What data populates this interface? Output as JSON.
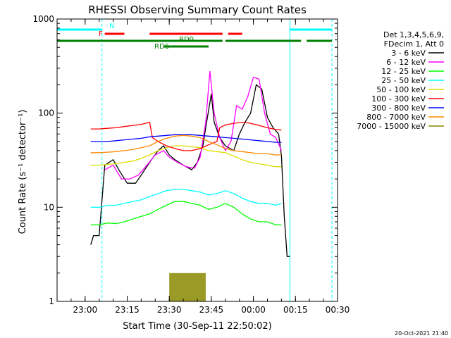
{
  "chart_data": {
    "type": "line",
    "title": "RHESSI Observing Summary Count Rates",
    "xlabel": "Start Time (30-Sep-11 22:50:02)",
    "ylabel": "Count Rate (s⁻¹ detector⁻¹)",
    "yscale": "log",
    "ylim": [
      1,
      1000
    ],
    "xlim_minutes": [
      0,
      100
    ],
    "x_ticks": [
      {
        "m": 10,
        "label": "23:00"
      },
      {
        "m": 25,
        "label": "23:15"
      },
      {
        "m": 40,
        "label": "23:30"
      },
      {
        "m": 55,
        "label": "23:45"
      },
      {
        "m": 70,
        "label": "00:00"
      },
      {
        "m": 85,
        "label": "00:15"
      },
      {
        "m": 100,
        "label": "00:30"
      }
    ],
    "y_ticks": [
      {
        "v": 1,
        "label": "1"
      },
      {
        "v": 10,
        "label": "10"
      },
      {
        "v": 100,
        "label": "100"
      },
      {
        "v": 1000,
        "label": "1000"
      }
    ],
    "legend_header": [
      "Det 1,3,4,5,6,9,",
      "FDecim 1, Att 0"
    ],
    "legend_position": "right",
    "series": [
      {
        "name": "3 - 6 keV",
        "color": "#000000",
        "points": [
          [
            12,
            4
          ],
          [
            13,
            5
          ],
          [
            15,
            5
          ],
          [
            17,
            28
          ],
          [
            20,
            32
          ],
          [
            22,
            25
          ],
          [
            25,
            18
          ],
          [
            28,
            18
          ],
          [
            30,
            22
          ],
          [
            33,
            30
          ],
          [
            36,
            40
          ],
          [
            38,
            45
          ],
          [
            40,
            36
          ],
          [
            42,
            32
          ],
          [
            45,
            28
          ],
          [
            48,
            25
          ],
          [
            50,
            30
          ],
          [
            52,
            45
          ],
          [
            53,
            70
          ],
          [
            55,
            160
          ],
          [
            56,
            80
          ],
          [
            58,
            55
          ],
          [
            60,
            45
          ],
          [
            63,
            40
          ],
          [
            65,
            60
          ],
          [
            67,
            80
          ],
          [
            69,
            100
          ],
          [
            71,
            200
          ],
          [
            73,
            180
          ],
          [
            75,
            90
          ],
          [
            77,
            70
          ],
          [
            79,
            60
          ],
          [
            80,
            35
          ],
          [
            81,
            8
          ],
          [
            82,
            3
          ],
          [
            83,
            3
          ]
        ]
      },
      {
        "name": "6 - 12 keV",
        "color": "#ff00ff",
        "points": [
          [
            17,
            25
          ],
          [
            20,
            28
          ],
          [
            23,
            20
          ],
          [
            26,
            20
          ],
          [
            29,
            22
          ],
          [
            32,
            28
          ],
          [
            35,
            36
          ],
          [
            38,
            40
          ],
          [
            40,
            34
          ],
          [
            43,
            30
          ],
          [
            46,
            27
          ],
          [
            49,
            26
          ],
          [
            51,
            34
          ],
          [
            53,
            80
          ],
          [
            54.5,
            280
          ],
          [
            56,
            100
          ],
          [
            58,
            55
          ],
          [
            60,
            40
          ],
          [
            62,
            50
          ],
          [
            64,
            120
          ],
          [
            66,
            110
          ],
          [
            68,
            150
          ],
          [
            70,
            240
          ],
          [
            72,
            230
          ],
          [
            74,
            100
          ],
          [
            76,
            60
          ],
          [
            78,
            55
          ],
          [
            80,
            40
          ]
        ]
      },
      {
        "name": "12 - 25 keV",
        "color": "#00ff00",
        "points": [
          [
            12,
            6.5
          ],
          [
            15,
            6.5
          ],
          [
            18,
            6.8
          ],
          [
            21,
            6.7
          ],
          [
            24,
            7
          ],
          [
            27,
            7.5
          ],
          [
            30,
            8
          ],
          [
            33,
            8.5
          ],
          [
            36,
            9.5
          ],
          [
            39,
            10.5
          ],
          [
            42,
            11.5
          ],
          [
            45,
            11.5
          ],
          [
            48,
            11
          ],
          [
            51,
            10.5
          ],
          [
            54,
            9.5
          ],
          [
            57,
            10
          ],
          [
            60,
            11
          ],
          [
            63,
            10
          ],
          [
            66,
            8.5
          ],
          [
            69,
            7.5
          ],
          [
            72,
            7
          ],
          [
            75,
            7
          ],
          [
            78,
            6.5
          ],
          [
            80,
            6.5
          ]
        ]
      },
      {
        "name": "25 - 50 keV",
        "color": "#00ffff",
        "points": [
          [
            12,
            10
          ],
          [
            15,
            10
          ],
          [
            18,
            10.5
          ],
          [
            21,
            10.5
          ],
          [
            24,
            11
          ],
          [
            27,
            11.5
          ],
          [
            30,
            12
          ],
          [
            33,
            13
          ],
          [
            36,
            14
          ],
          [
            39,
            15
          ],
          [
            42,
            15.5
          ],
          [
            45,
            15.5
          ],
          [
            48,
            15
          ],
          [
            51,
            14.5
          ],
          [
            54,
            13.5
          ],
          [
            57,
            14
          ],
          [
            60,
            15
          ],
          [
            63,
            14
          ],
          [
            66,
            12.5
          ],
          [
            69,
            11.5
          ],
          [
            72,
            11
          ],
          [
            75,
            11
          ],
          [
            78,
            10.5
          ],
          [
            80,
            11
          ]
        ]
      },
      {
        "name": "50 - 100 keV",
        "color": "#dddd00",
        "points": [
          [
            12,
            28
          ],
          [
            15,
            28
          ],
          [
            18,
            28.5
          ],
          [
            21,
            29
          ],
          [
            24,
            30
          ],
          [
            27,
            31
          ],
          [
            30,
            33
          ],
          [
            33,
            36
          ],
          [
            36,
            40
          ],
          [
            39,
            43
          ],
          [
            42,
            45
          ],
          [
            45,
            45
          ],
          [
            48,
            44
          ],
          [
            51,
            43
          ],
          [
            54,
            40
          ],
          [
            57,
            39
          ],
          [
            60,
            38
          ],
          [
            63,
            35
          ],
          [
            66,
            32
          ],
          [
            69,
            30
          ],
          [
            72,
            29
          ],
          [
            75,
            28
          ],
          [
            78,
            27
          ],
          [
            80,
            27
          ]
        ]
      },
      {
        "name": "100 - 300 keV",
        "color": "#ff0000",
        "points": [
          [
            12,
            68
          ],
          [
            15,
            68
          ],
          [
            18,
            69
          ],
          [
            21,
            70
          ],
          [
            24,
            72
          ],
          [
            27,
            74
          ],
          [
            30,
            76
          ],
          [
            33,
            80
          ],
          [
            34,
            55
          ],
          [
            36,
            50
          ],
          [
            39,
            45
          ],
          [
            42,
            42
          ],
          [
            45,
            40
          ],
          [
            48,
            40
          ],
          [
            51,
            42
          ],
          [
            54,
            46
          ],
          [
            57,
            50
          ],
          [
            58,
            70
          ],
          [
            60,
            75
          ],
          [
            63,
            78
          ],
          [
            66,
            80
          ],
          [
            69,
            78
          ],
          [
            72,
            74
          ],
          [
            75,
            70
          ],
          [
            78,
            67
          ],
          [
            80,
            66
          ]
        ]
      },
      {
        "name": "300 - 800 keV",
        "color": "#0000ff",
        "points": [
          [
            12,
            50
          ],
          [
            15,
            50
          ],
          [
            18,
            50
          ],
          [
            21,
            51
          ],
          [
            24,
            52
          ],
          [
            27,
            53
          ],
          [
            30,
            54
          ],
          [
            33,
            56
          ],
          [
            36,
            57
          ],
          [
            39,
            58
          ],
          [
            42,
            59
          ],
          [
            45,
            59
          ],
          [
            48,
            59
          ],
          [
            51,
            58
          ],
          [
            54,
            57
          ],
          [
            57,
            56
          ],
          [
            60,
            55
          ],
          [
            63,
            54
          ],
          [
            66,
            53
          ],
          [
            69,
            52
          ],
          [
            72,
            51
          ],
          [
            75,
            50
          ],
          [
            78,
            49
          ],
          [
            80,
            49
          ]
        ]
      },
      {
        "name": "800 - 7000 keV",
        "color": "#ff8800",
        "points": [
          [
            12,
            38
          ],
          [
            15,
            38
          ],
          [
            18,
            38.5
          ],
          [
            21,
            39
          ],
          [
            24,
            40
          ],
          [
            27,
            41
          ],
          [
            30,
            43
          ],
          [
            33,
            45
          ],
          [
            36,
            50
          ],
          [
            39,
            54
          ],
          [
            42,
            57
          ],
          [
            45,
            58
          ],
          [
            48,
            57
          ],
          [
            51,
            55
          ],
          [
            54,
            50
          ],
          [
            57,
            46
          ],
          [
            60,
            42
          ],
          [
            63,
            40
          ],
          [
            66,
            39
          ],
          [
            69,
            38
          ],
          [
            72,
            37
          ],
          [
            75,
            37
          ],
          [
            78,
            36
          ],
          [
            80,
            36
          ]
        ]
      },
      {
        "name": "7000 - 15000 keV",
        "color": "#888800",
        "points": [
          [
            40,
            2
          ],
          [
            41,
            2
          ],
          [
            42,
            2
          ],
          [
            43,
            2
          ],
          [
            44,
            2
          ],
          [
            45,
            2
          ],
          [
            46,
            2
          ],
          [
            47,
            2
          ],
          [
            48,
            2
          ],
          [
            49,
            2
          ],
          [
            50,
            2
          ],
          [
            51,
            2
          ],
          [
            52,
            2
          ],
          [
            53,
            2
          ]
        ]
      }
    ],
    "state_bars": [
      {
        "label": "N",
        "color": "#00ffff",
        "segments": [
          [
            0,
            16
          ],
          [
            83,
            98
          ]
        ]
      },
      {
        "label": "F",
        "color": "#ff0000",
        "segments": [
          [
            17,
            24
          ],
          [
            33,
            59
          ],
          [
            61,
            66
          ]
        ]
      },
      {
        "label": "RD0",
        "color": "#008000",
        "segments": [
          [
            0,
            33
          ],
          [
            33,
            59
          ],
          [
            60,
            87
          ],
          [
            89,
            98
          ]
        ]
      },
      {
        "label": "RD6",
        "color": "#008000",
        "segments": [
          [
            38,
            54
          ]
        ]
      }
    ],
    "vlines": [
      {
        "m": 0,
        "color": "#00ffff",
        "style": "solid"
      },
      {
        "m": 16,
        "color": "#00ffff",
        "style": "dashed"
      },
      {
        "m": 83,
        "color": "#00ffff",
        "style": "solid"
      },
      {
        "m": 98,
        "color": "#00ffff",
        "style": "dashed"
      }
    ],
    "footer_date": "20-Oct-2021 21:40"
  }
}
